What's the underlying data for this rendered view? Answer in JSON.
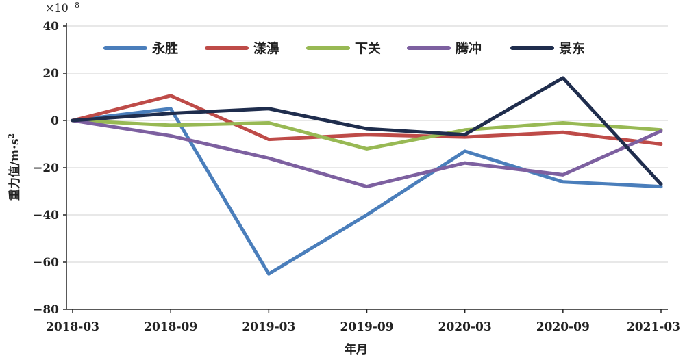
{
  "chart_data": {
    "type": "line",
    "categories": [
      "2018-03",
      "2018-09",
      "2019-03",
      "2019-09",
      "2020-03",
      "2020-09",
      "2021-03"
    ],
    "series": [
      {
        "name": "永胜",
        "color": "#4a7ebb",
        "values": [
          0,
          5,
          -65,
          -40,
          -13,
          -26,
          -28
        ]
      },
      {
        "name": "漾濞",
        "color": "#be4b48",
        "values": [
          0,
          10.5,
          -8,
          -6,
          -7,
          -5,
          -10
        ]
      },
      {
        "name": "下关",
        "color": "#98b954",
        "values": [
          0,
          -2,
          -1,
          -12,
          -4,
          -1,
          -4
        ]
      },
      {
        "name": "腾冲",
        "color": "#7d60a0",
        "values": [
          0,
          -6.5,
          -16,
          -28,
          -18,
          -23,
          -4.5
        ]
      },
      {
        "name": "景东",
        "color": "#1f2d4d",
        "values": [
          0,
          3,
          5,
          -3.5,
          -6,
          18,
          -27
        ]
      }
    ],
    "xlabel": "年月",
    "ylabel": "重力值/m·s²",
    "ylabel_parts": {
      "main": "重力值/m·s",
      "sup": "2"
    },
    "y_multiplier": {
      "base": "×10",
      "exp": "−8"
    },
    "ylim": [
      -80,
      40
    ],
    "yticks": [
      40,
      20,
      0,
      -20,
      -40,
      -60,
      -80
    ],
    "ytick_labels": [
      "40",
      "20",
      "0",
      "−20",
      "−40",
      "−60",
      "−80"
    ],
    "grid": "horizontal",
    "legend": "top"
  }
}
